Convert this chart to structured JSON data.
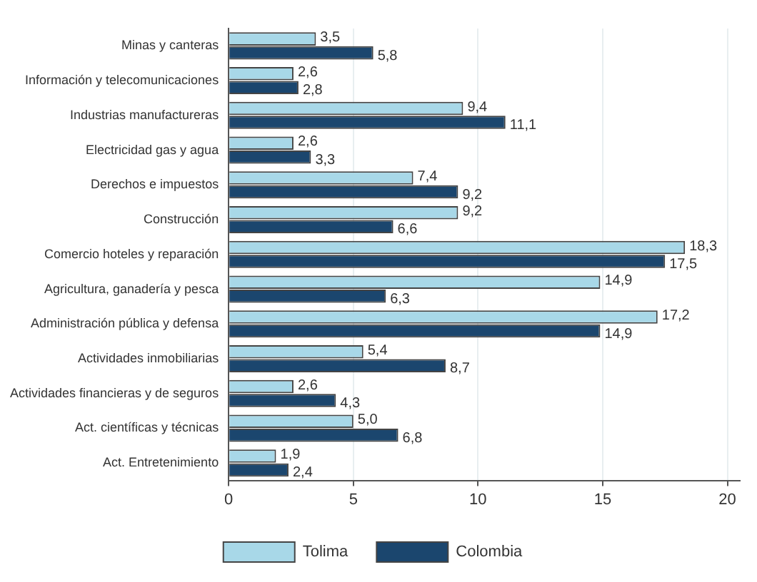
{
  "chart_data": {
    "type": "bar",
    "orientation": "horizontal",
    "categories": [
      "Minas y canteras",
      "Información y telecomunicaciones",
      "Industrias manufactureras",
      "Electricidad gas y agua",
      "Derechos e impuestos",
      "Construcción",
      "Comercio hoteles y reparación",
      "Agricultura, ganadería y pesca",
      "Administración pública y defensa",
      "Actividades inmobiliarias",
      "Actividades financieras y de seguros",
      "Act. científicas y técnicas",
      "Act. Entretenimiento"
    ],
    "series": [
      {
        "name": "Tolima",
        "color": "#a8d8e8",
        "values": [
          3.5,
          2.6,
          9.4,
          2.6,
          7.4,
          9.2,
          18.3,
          14.9,
          17.2,
          5.4,
          2.6,
          5.0,
          1.9
        ],
        "value_labels": [
          "3,5",
          "2,6",
          "9,4",
          "2,6",
          "7,4",
          "9,2",
          "18,3",
          "14,9",
          "17,2",
          "5,4",
          "2,6",
          "5,0",
          "1,9"
        ]
      },
      {
        "name": "Colombia",
        "color": "#1b466e",
        "values": [
          5.8,
          2.8,
          11.1,
          3.3,
          9.2,
          6.6,
          17.5,
          6.3,
          14.9,
          8.7,
          4.3,
          6.8,
          2.4
        ],
        "value_labels": [
          "5,8",
          "2,8",
          "11,1",
          "3,3",
          "9,2",
          "6,6",
          "17,5",
          "6,3",
          "14,9",
          "8,7",
          "4,3",
          "6,8",
          "2,4"
        ]
      }
    ],
    "xlim": [
      0,
      20.5
    ],
    "xticks": [
      0,
      5,
      10,
      15,
      20
    ],
    "grid": "x",
    "legend": "bottom"
  }
}
